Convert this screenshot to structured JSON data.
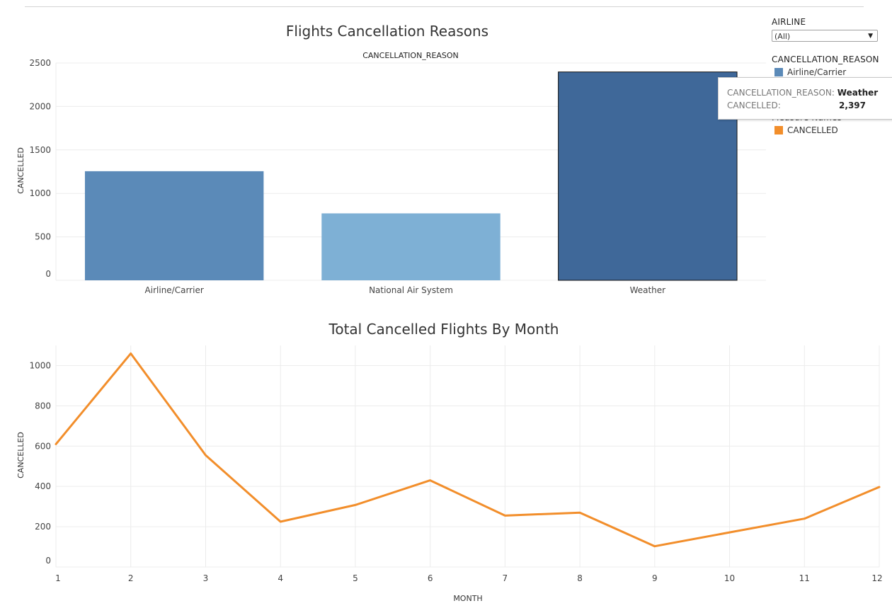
{
  "legend": {
    "airline_title": "AIRLINE",
    "airline_value": "(All)",
    "reason_title": "CANCELLATION_REASON",
    "reason_item_1": "Airline/Carrier",
    "measure_title": "Measure Names",
    "measure_item": "CANCELLED",
    "reason_color": "#5b8ab8",
    "measure_color": "#f28e2b"
  },
  "tooltip": {
    "k1": "CANCELLATION_REASON:",
    "v1": "Weather",
    "k2": "CANCELLED:",
    "v2": "2,397"
  },
  "chart_data": [
    {
      "type": "bar",
      "title": "Flights Cancellation Reasons",
      "header": "CANCELLATION_REASON",
      "ylabel": "CANCELLED",
      "xlabel": "",
      "categories": [
        "Airline/Carrier",
        "National Air System",
        "Weather"
      ],
      "values": [
        1255,
        770,
        2397
      ],
      "colors": [
        "#5b8ab8",
        "#7eb0d5",
        "#3f6899"
      ],
      "ylim": [
        0,
        2500
      ],
      "yticks": [
        0,
        500,
        1000,
        1500,
        2000,
        2500
      ],
      "highlighted": "Weather",
      "grid": true
    },
    {
      "type": "line",
      "title": "Total Cancelled Flights By Month",
      "xlabel": "MONTH",
      "ylabel": "CANCELLED",
      "x": [
        1,
        2,
        3,
        4,
        5,
        6,
        7,
        8,
        9,
        10,
        11,
        12
      ],
      "series": [
        {
          "name": "CANCELLED",
          "values": [
            610,
            1060,
            555,
            225,
            308,
            430,
            255,
            270,
            103,
            172,
            240,
            397
          ]
        }
      ],
      "color": "#f28e2b",
      "ylim": [
        0,
        1100
      ],
      "yticks": [
        0,
        200,
        400,
        600,
        800,
        1000
      ],
      "grid": true
    }
  ]
}
